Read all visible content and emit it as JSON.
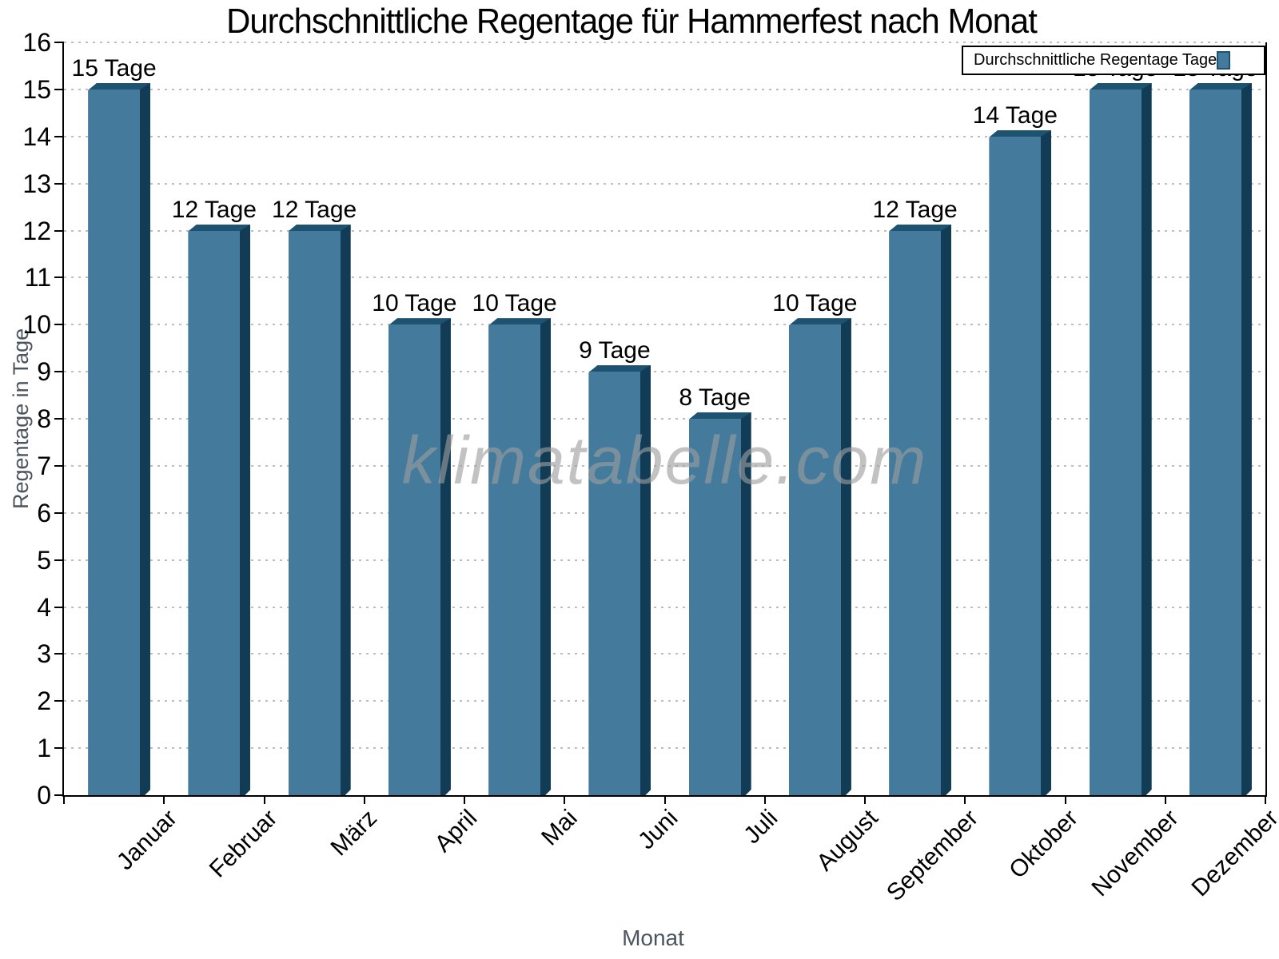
{
  "chart_data": {
    "type": "bar",
    "title": "Durchschnittliche Regentage für Hammerfest nach Monat",
    "categories": [
      "Januar",
      "Februar",
      "März",
      "April",
      "Mai",
      "Juni",
      "Juli",
      "August",
      "September",
      "Oktober",
      "November",
      "Dezember"
    ],
    "values": [
      15,
      12,
      12,
      10,
      10,
      9,
      8,
      10,
      12,
      14,
      15,
      15
    ],
    "value_label_suffix": " Tage",
    "value_labels": [
      "15 Tage",
      "12 Tage",
      "12 Tage",
      "10 Tage",
      "10 Tage",
      "9 Tage",
      "8 Tage",
      "10 Tage",
      "12 Tage",
      "14 Tage",
      "15 Tage",
      "15 Tage"
    ],
    "xlabel": "Monat",
    "ylabel": "Regentage in Tage",
    "ylim": [
      0,
      16
    ],
    "y_tick_step": 1,
    "y_tick_labels": [
      "0",
      "1",
      "2",
      "3",
      "4",
      "5",
      "6",
      "7",
      "8",
      "9",
      "10",
      "11",
      "12",
      "13",
      "14",
      "15",
      "16"
    ],
    "grid": "dotted horizontal",
    "legend": {
      "label": "Durchschnittliche Regentage Tage",
      "position": "top-right"
    },
    "watermark": "klimatabelle.com",
    "colors": {
      "bar_face": "#447a9c",
      "bar_side": "#123c55",
      "bar_top": "#1d5270",
      "grid": "#bdbdbd",
      "axis": "#000000",
      "muted_text": "#4c555e"
    }
  }
}
